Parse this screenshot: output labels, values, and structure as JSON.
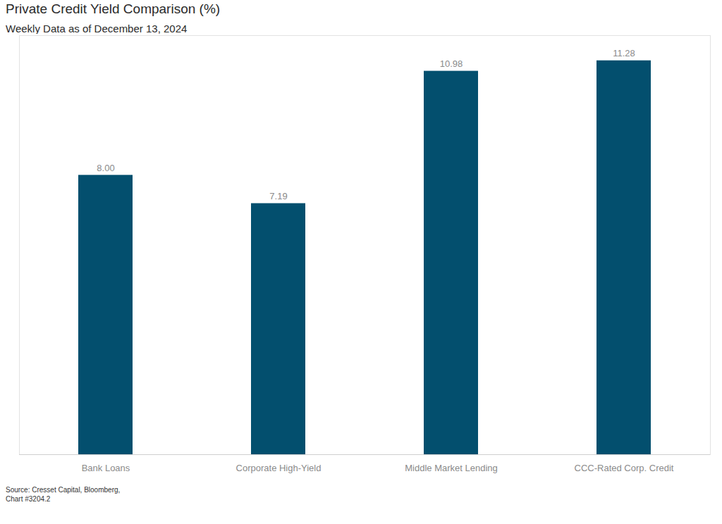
{
  "chart_data": {
    "type": "bar",
    "title": "Private Credit Yield Comparison (%)",
    "subtitle": "Weekly Data as of December 13, 2024",
    "caption": [
      "Source: Cresset Capital, Bloomberg,",
      "Chart #3204.2"
    ],
    "categories": [
      "Bank Loans",
      "Corporate High-Yield",
      "Middle Market Lending",
      "CCC-Rated Corp. Credit"
    ],
    "values": [
      8.0,
      7.19,
      10.98,
      11.28
    ],
    "value_labels": [
      "8.00",
      "7.19",
      "10.98",
      "11.28"
    ],
    "color": "#034f6e",
    "ylim": [
      0,
      12
    ],
    "yticks": [],
    "tick_labels": "x",
    "data_labels": true,
    "grid": false
  }
}
